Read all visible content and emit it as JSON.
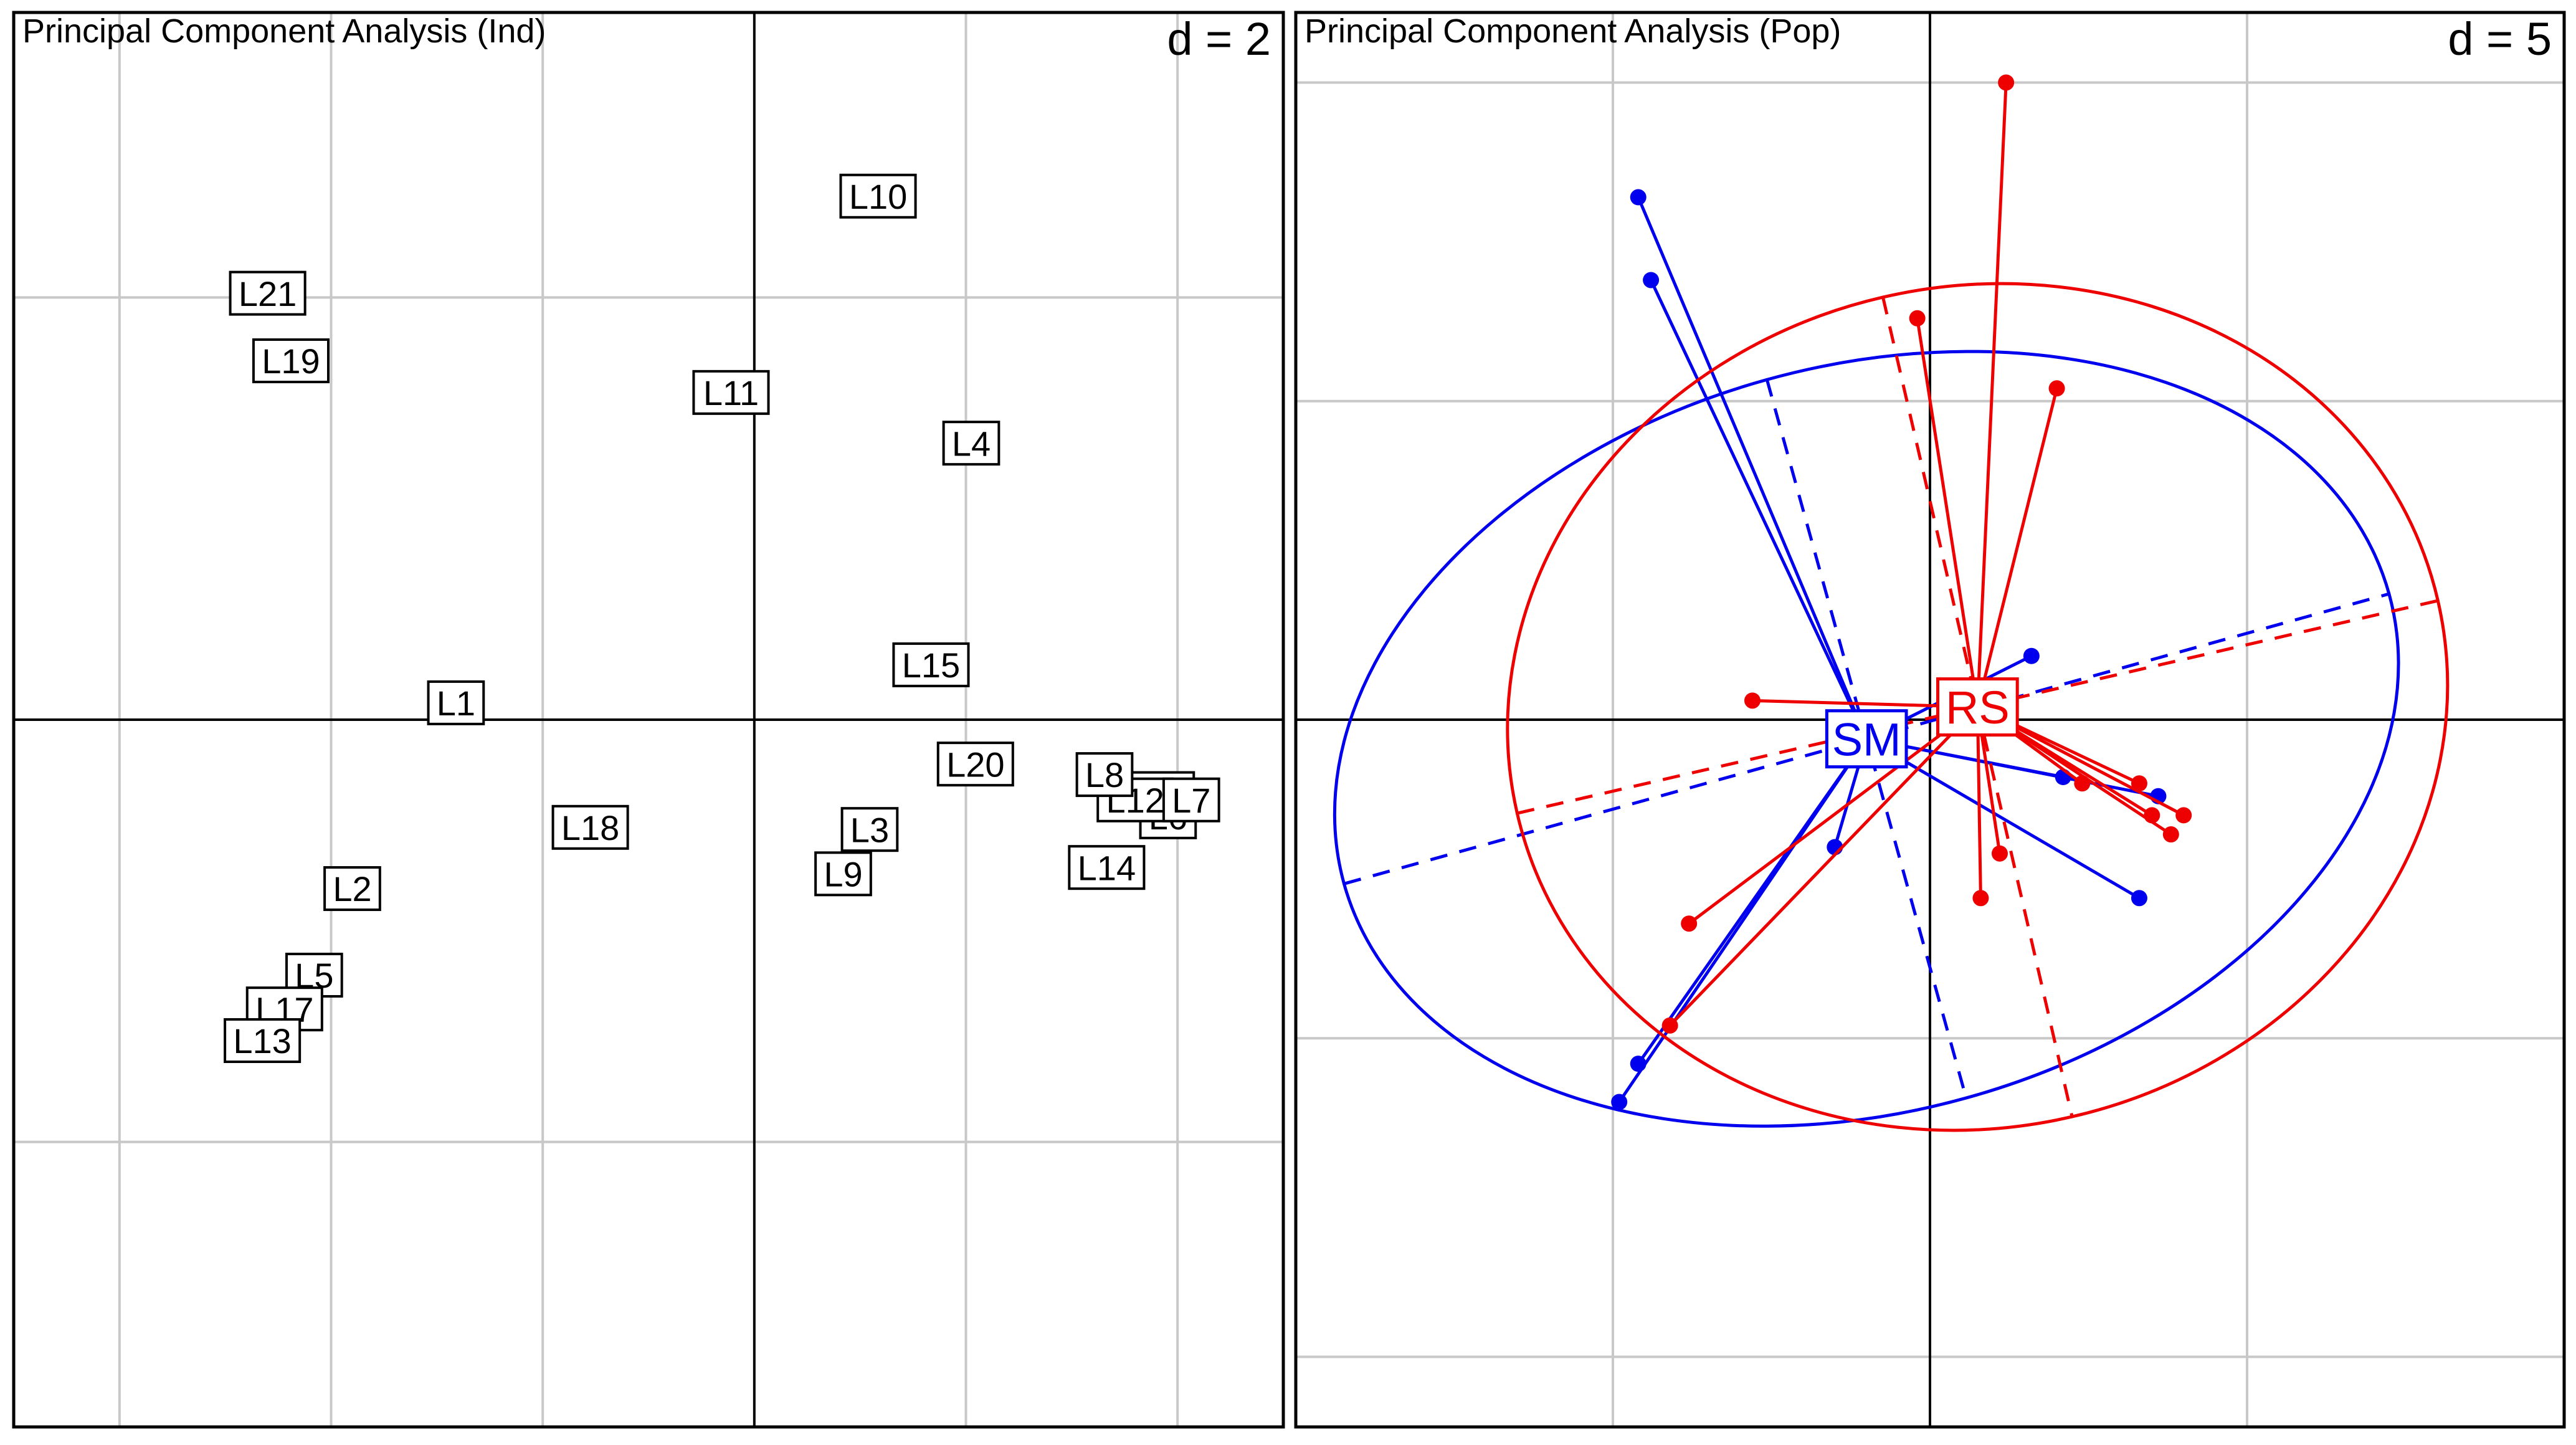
{
  "colors": {
    "frame": "#000000",
    "grid": "#c8c8c8",
    "axis": "#000000",
    "SM": "#0000ee",
    "RS": "#ee0000"
  },
  "chart_data": [
    {
      "type": "scatter",
      "title": "Principal Component Analysis (Ind)",
      "grid_label": "d = 2",
      "xlim": [
        -7,
        5
      ],
      "ylim": [
        -3.35,
        3.35
      ],
      "grid_step": 2,
      "points": [
        {
          "label": "L10",
          "x": 1.17,
          "y": 2.48
        },
        {
          "label": "L21",
          "x": -4.6,
          "y": 2.02
        },
        {
          "label": "L19",
          "x": -4.38,
          "y": 1.7
        },
        {
          "label": "L11",
          "x": -0.22,
          "y": 1.55
        },
        {
          "label": "L4",
          "x": 2.05,
          "y": 1.31
        },
        {
          "label": "L15",
          "x": 1.67,
          "y": 0.26
        },
        {
          "label": "L1",
          "x": -2.82,
          "y": 0.08
        },
        {
          "label": "L20",
          "x": 2.09,
          "y": -0.21
        },
        {
          "label": "L16",
          "x": 3.8,
          "y": -0.35
        },
        {
          "label": "L6",
          "x": 3.91,
          "y": -0.46
        },
        {
          "label": "L12",
          "x": 3.6,
          "y": -0.38
        },
        {
          "label": "L8",
          "x": 3.31,
          "y": -0.26
        },
        {
          "label": "L7",
          "x": 4.13,
          "y": -0.38
        },
        {
          "label": "L18",
          "x": -1.55,
          "y": -0.51
        },
        {
          "label": "L3",
          "x": 1.09,
          "y": -0.52
        },
        {
          "label": "L9",
          "x": 0.84,
          "y": -0.73
        },
        {
          "label": "L14",
          "x": 3.33,
          "y": -0.7
        },
        {
          "label": "L2",
          "x": -3.8,
          "y": -0.8
        },
        {
          "label": "L5",
          "x": -4.16,
          "y": -1.21
        },
        {
          "label": "L17",
          "x": -4.44,
          "y": -1.37
        },
        {
          "label": "L13",
          "x": -4.65,
          "y": -1.52
        }
      ]
    },
    {
      "type": "scatter",
      "title": "Principal Component Analysis (Pop)",
      "grid_label": "d = 5",
      "xlim": [
        -10,
        10
      ],
      "ylim": [
        -11.1,
        11.1
      ],
      "grid_step": 5,
      "groups": [
        {
          "name": "SM",
          "color": "#0000ee",
          "center": [
            -1.0,
            -0.3
          ],
          "points": [
            [
              -4.6,
              8.2
            ],
            [
              -4.4,
              6.9
            ],
            [
              -4.9,
              -6.0
            ],
            [
              -4.6,
              -5.4
            ],
            [
              1.6,
              1.0
            ],
            [
              2.1,
              -0.9
            ],
            [
              3.6,
              -1.2
            ],
            [
              3.3,
              -2.8
            ],
            [
              -1.5,
              -2.0
            ]
          ],
          "ellipse": {
            "rx": 8.55,
            "ry": 5.85,
            "angle": -15.5
          }
        },
        {
          "name": "RS",
          "color": "#ee0000",
          "center": [
            0.75,
            0.2
          ],
          "points": [
            [
              1.2,
              10.0
            ],
            [
              2.0,
              5.2
            ],
            [
              -0.2,
              6.3
            ],
            [
              -2.8,
              0.3
            ],
            [
              -3.8,
              -3.2
            ],
            [
              -4.1,
              -4.8
            ],
            [
              0.8,
              -2.8
            ],
            [
              1.1,
              -2.1
            ],
            [
              3.3,
              -1.0
            ],
            [
              3.5,
              -1.5
            ],
            [
              3.8,
              -1.8
            ],
            [
              4.0,
              -1.5
            ],
            [
              2.4,
              -1.0
            ]
          ],
          "ellipse": {
            "rx": 7.45,
            "ry": 6.6,
            "angle": -13.0
          }
        }
      ]
    }
  ]
}
